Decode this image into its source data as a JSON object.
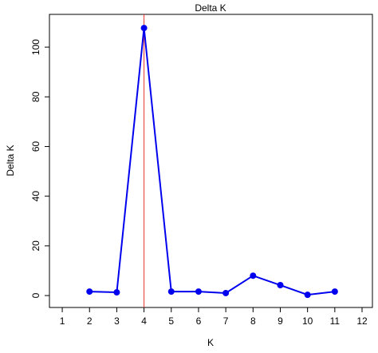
{
  "chart_data": {
    "type": "line",
    "title": "Delta K",
    "x_label": "K",
    "y_label": "Delta K",
    "x": [
      2,
      3,
      4,
      5,
      6,
      7,
      8,
      9,
      10,
      11
    ],
    "series": [
      {
        "name": "Delta K",
        "color": "#0000ee",
        "values": [
          1.6,
          1.3,
          107.7,
          1.6,
          1.6,
          1.0,
          8.0,
          4.2,
          0.3,
          1.6
        ]
      }
    ],
    "vline": {
      "value": 4,
      "color": "#e8332e"
    },
    "xlim": [
      0.53,
      12.38
    ],
    "ylim": [
      -4.8,
      113.2
    ],
    "xticks": [
      1,
      2,
      3,
      4,
      5,
      6,
      7,
      8,
      9,
      10,
      11,
      12
    ],
    "yticks": [
      0,
      20,
      40,
      60,
      80,
      100
    ]
  }
}
